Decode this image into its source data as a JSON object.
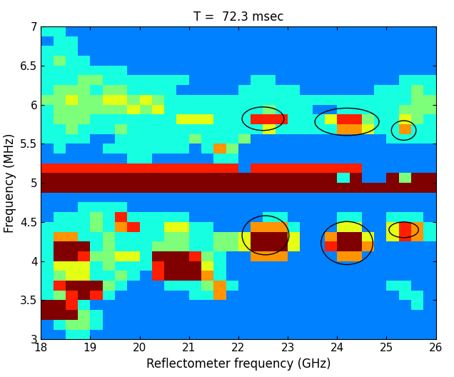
{
  "chart_data": {
    "type": "heatmap",
    "title": "T =  72.3 msec",
    "x_label": "Reflectometer frequency (GHz)",
    "y_label": "Frequency (MHz)",
    "xlim": [
      18,
      26
    ],
    "ylim": [
      3,
      7
    ],
    "xticks": [
      18,
      19,
      20,
      21,
      22,
      23,
      24,
      25,
      26
    ],
    "yticks": [
      3,
      3.5,
      4,
      4.5,
      5,
      5.5,
      6,
      6.5,
      7
    ],
    "color": "jet",
    "zlim": [
      0,
      8
    ],
    "x_edges": [
      18,
      18.25,
      18.5,
      18.75,
      19,
      19.25,
      19.5,
      19.75,
      20,
      20.25,
      20.5,
      20.75,
      21,
      21.25,
      21.5,
      21.75,
      22,
      22.25,
      22.5,
      22.75,
      23,
      23.25,
      23.5,
      23.75,
      24,
      24.25,
      24.5,
      24.75,
      25,
      25.25,
      25.5,
      25.75,
      26
    ],
    "y_edges": [
      3,
      3.125,
      3.25,
      3.375,
      3.5,
      3.625,
      3.75,
      3.875,
      4,
      4.125,
      4.25,
      4.375,
      4.5,
      4.625,
      4.75,
      4.875,
      5,
      5.125,
      5.25,
      5.375,
      5.5,
      5.625,
      5.75,
      5.875,
      6,
      6.125,
      6.25,
      6.375,
      6.5,
      6.625,
      6.75,
      6.875,
      7
    ],
    "cells": [
      [
        2,
        2,
        3,
        3,
        2,
        2,
        2,
        2,
        2,
        2,
        2,
        2,
        2,
        2,
        2,
        2,
        2,
        2,
        2,
        2,
        2,
        2,
        2,
        2,
        2,
        2,
        2,
        2,
        2,
        2,
        2,
        2
      ],
      [
        2,
        3,
        4,
        4,
        3,
        2,
        2,
        2,
        2,
        2,
        2,
        2,
        2,
        2,
        2,
        2,
        2,
        2,
        2,
        2,
        2,
        2,
        2,
        2,
        2,
        2,
        2,
        2,
        2,
        2,
        2,
        2
      ],
      [
        8,
        8,
        8,
        4,
        3,
        2,
        2,
        2,
        2,
        2,
        2,
        2,
        2,
        2,
        2,
        2,
        2,
        2,
        2,
        2,
        2,
        2,
        2,
        2,
        2,
        2,
        2,
        2,
        2,
        2,
        2,
        2
      ],
      [
        8,
        8,
        7,
        3,
        2,
        2,
        2,
        2,
        2,
        2,
        2,
        2,
        2,
        2,
        2,
        2,
        2,
        2,
        2,
        2,
        2,
        2,
        2,
        2,
        2,
        2,
        2,
        2,
        2,
        2,
        3,
        2
      ],
      [
        3,
        4,
        7,
        8,
        7,
        3,
        2,
        2,
        2,
        2,
        2,
        2,
        3,
        3,
        6,
        2,
        2,
        2,
        2,
        2,
        2,
        2,
        2,
        2,
        2,
        2,
        2,
        2,
        2,
        3,
        3,
        2
      ],
      [
        3,
        7,
        8,
        8,
        8,
        4,
        3,
        2,
        2,
        2,
        3,
        3,
        3,
        4,
        6,
        3,
        2,
        2,
        2,
        2,
        2,
        2,
        2,
        2,
        2,
        2,
        2,
        2,
        3,
        3,
        2,
        2
      ],
      [
        3,
        4,
        5,
        5,
        3,
        3,
        4,
        3,
        2,
        7,
        8,
        8,
        8,
        6,
        3,
        2,
        2,
        2,
        2,
        2,
        2,
        2,
        2,
        2,
        2,
        2,
        2,
        2,
        2,
        2,
        2,
        2
      ],
      [
        3,
        5,
        5,
        5,
        3,
        4,
        3,
        3,
        3,
        7,
        8,
        8,
        8,
        5,
        3,
        2,
        2,
        2,
        2,
        2,
        2,
        2,
        2,
        2,
        2,
        2,
        2,
        2,
        2,
        2,
        2,
        2
      ],
      [
        3,
        8,
        8,
        7,
        4,
        4,
        5,
        5,
        3,
        8,
        8,
        8,
        7,
        4,
        3,
        2,
        2,
        6,
        6,
        6,
        2,
        2,
        2,
        2,
        6,
        6,
        2,
        2,
        2,
        2,
        2,
        2
      ],
      [
        3,
        8,
        8,
        8,
        3,
        4,
        3,
        3,
        3,
        4,
        4,
        4,
        3,
        3,
        4,
        4,
        5,
        8,
        8,
        8,
        5,
        2,
        2,
        7,
        8,
        8,
        6,
        2,
        2,
        2,
        2,
        2
      ],
      [
        3,
        6,
        6,
        3,
        3,
        4,
        3,
        3,
        3,
        3,
        4,
        4,
        3,
        3,
        4,
        4,
        5,
        8,
        8,
        8,
        5,
        2,
        2,
        6,
        8,
        8,
        5,
        2,
        5,
        7,
        6,
        3
      ],
      [
        3,
        3,
        3,
        3,
        4,
        3,
        6,
        7,
        3,
        3,
        5,
        5,
        3,
        3,
        2,
        2,
        2,
        6,
        6,
        6,
        3,
        2,
        2,
        2,
        5,
        5,
        2,
        2,
        5,
        7,
        6,
        3
      ],
      [
        2,
        3,
        3,
        3,
        4,
        3,
        7,
        3,
        3,
        3,
        3,
        3,
        2,
        2,
        2,
        2,
        2,
        2,
        3,
        3,
        2,
        2,
        2,
        2,
        3,
        3,
        2,
        2,
        3,
        3,
        3,
        2
      ],
      [
        2,
        2,
        2,
        3,
        3,
        3,
        3,
        2,
        2,
        2,
        2,
        2,
        2,
        2,
        2,
        2,
        2,
        2,
        2,
        2,
        2,
        2,
        2,
        2,
        2,
        2,
        2,
        2,
        2,
        2,
        2,
        2
      ],
      [
        2,
        2,
        2,
        2,
        2,
        2,
        2,
        2,
        2,
        2,
        2,
        2,
        2,
        2,
        2,
        2,
        2,
        2,
        2,
        2,
        2,
        2,
        2,
        2,
        2,
        2,
        2,
        2,
        2,
        2,
        2,
        2
      ],
      [
        8,
        8,
        8,
        8,
        8,
        8,
        8,
        8,
        8,
        8,
        8,
        8,
        8,
        8,
        8,
        8,
        8,
        8,
        8,
        8,
        8,
        8,
        8,
        8,
        8,
        8,
        8,
        8,
        8,
        8,
        8,
        8
      ],
      [
        8,
        8,
        8,
        8,
        8,
        8,
        8,
        8,
        8,
        8,
        8,
        8,
        8,
        8,
        8,
        8,
        8,
        8,
        8,
        8,
        8,
        8,
        8,
        8,
        3,
        8,
        2,
        2,
        8,
        4,
        8,
        8
      ],
      [
        7,
        7,
        7,
        7,
        7,
        7,
        7,
        7,
        7,
        7,
        7,
        7,
        7,
        7,
        7,
        7,
        2,
        7,
        7,
        7,
        7,
        7,
        7,
        7,
        7,
        7,
        2,
        2,
        2,
        2,
        2,
        2
      ],
      [
        2,
        2,
        2,
        2,
        2,
        2,
        2,
        3,
        3,
        2,
        2,
        2,
        2,
        2,
        3,
        3,
        2,
        2,
        2,
        2,
        2,
        2,
        2,
        2,
        2,
        2,
        2,
        2,
        2,
        2,
        2,
        2
      ],
      [
        2,
        3,
        2,
        2,
        2,
        3,
        3,
        3,
        3,
        3,
        3,
        3,
        2,
        3,
        6,
        4,
        2,
        2,
        2,
        2,
        2,
        2,
        2,
        2,
        2,
        2,
        2,
        2,
        2,
        2,
        2,
        2
      ],
      [
        3,
        3,
        3,
        3,
        2,
        2,
        3,
        3,
        3,
        3,
        3,
        3,
        4,
        3,
        3,
        3,
        4,
        2,
        2,
        2,
        2,
        2,
        2,
        2,
        2,
        2,
        2,
        2,
        3,
        3,
        3,
        3
      ],
      [
        3,
        3,
        4,
        3,
        3,
        3,
        4,
        3,
        3,
        3,
        3,
        3,
        3,
        3,
        3,
        3,
        3,
        3,
        5,
        3,
        3,
        3,
        3,
        3,
        6,
        6,
        5,
        3,
        3,
        6,
        3,
        3
      ],
      [
        3,
        4,
        4,
        4,
        3,
        3,
        3,
        3,
        3,
        3,
        3,
        5,
        5,
        5,
        3,
        3,
        3,
        7,
        7,
        7,
        3,
        3,
        3,
        5,
        7,
        7,
        4,
        3,
        3,
        5,
        4,
        3
      ],
      [
        3,
        4,
        4,
        4,
        4,
        4,
        4,
        5,
        4,
        5,
        3,
        3,
        3,
        3,
        3,
        3,
        3,
        3,
        4,
        3,
        3,
        3,
        2,
        2,
        3,
        3,
        3,
        3,
        3,
        4,
        4,
        4
      ],
      [
        4,
        4,
        5,
        4,
        4,
        5,
        5,
        4,
        5,
        4,
        3,
        3,
        3,
        3,
        3,
        3,
        3,
        3,
        3,
        3,
        3,
        3,
        3,
        3,
        3,
        3,
        3,
        3,
        3,
        3,
        4,
        4
      ],
      [
        3,
        4,
        4,
        4,
        3,
        4,
        4,
        3,
        3,
        3,
        3,
        2,
        2,
        2,
        2,
        2,
        3,
        3,
        3,
        3,
        3,
        2,
        2,
        2,
        2,
        2,
        2,
        3,
        3,
        3,
        4,
        3
      ],
      [
        3,
        3,
        3,
        4,
        4,
        3,
        3,
        3,
        3,
        3,
        3,
        3,
        2,
        2,
        2,
        2,
        2,
        3,
        3,
        2,
        2,
        2,
        2,
        2,
        2,
        2,
        2,
        2,
        2,
        3,
        3,
        3
      ],
      [
        3,
        3,
        3,
        3,
        3,
        3,
        3,
        2,
        2,
        2,
        2,
        2,
        2,
        2,
        2,
        2,
        2,
        2,
        2,
        2,
        2,
        2,
        2,
        2,
        2,
        2,
        2,
        2,
        2,
        2,
        2,
        2
      ],
      [
        3,
        4,
        3,
        3,
        2,
        2,
        2,
        2,
        2,
        2,
        2,
        2,
        2,
        2,
        2,
        2,
        2,
        2,
        2,
        2,
        2,
        2,
        2,
        2,
        2,
        2,
        2,
        2,
        2,
        2,
        2,
        2
      ],
      [
        3,
        3,
        3,
        2,
        2,
        2,
        2,
        2,
        2,
        2,
        2,
        2,
        2,
        2,
        2,
        2,
        2,
        2,
        2,
        2,
        2,
        2,
        2,
        2,
        2,
        2,
        2,
        2,
        2,
        2,
        2,
        2
      ],
      [
        2,
        3,
        3,
        2,
        2,
        2,
        2,
        2,
        2,
        2,
        2,
        2,
        2,
        2,
        2,
        2,
        2,
        2,
        2,
        2,
        2,
        2,
        2,
        2,
        2,
        2,
        2,
        2,
        2,
        2,
        2,
        2
      ],
      [
        3,
        3,
        2,
        2,
        2,
        2,
        2,
        2,
        2,
        2,
        2,
        2,
        2,
        2,
        2,
        2,
        2,
        2,
        2,
        2,
        2,
        2,
        2,
        2,
        2,
        2,
        2,
        2,
        2,
        2,
        2,
        2
      ]
    ],
    "ellipses": [
      {
        "x": 22.5,
        "y": 5.82,
        "width": 0.85,
        "height": 0.3
      },
      {
        "x": 24.2,
        "y": 5.78,
        "width": 1.3,
        "height": 0.35
      },
      {
        "x": 25.35,
        "y": 5.67,
        "width": 0.5,
        "height": 0.25
      },
      {
        "x": 22.55,
        "y": 4.33,
        "width": 0.95,
        "height": 0.5
      },
      {
        "x": 24.2,
        "y": 4.23,
        "width": 1.05,
        "height": 0.55
      },
      {
        "x": 25.35,
        "y": 4.4,
        "width": 0.6,
        "height": 0.2
      }
    ]
  }
}
